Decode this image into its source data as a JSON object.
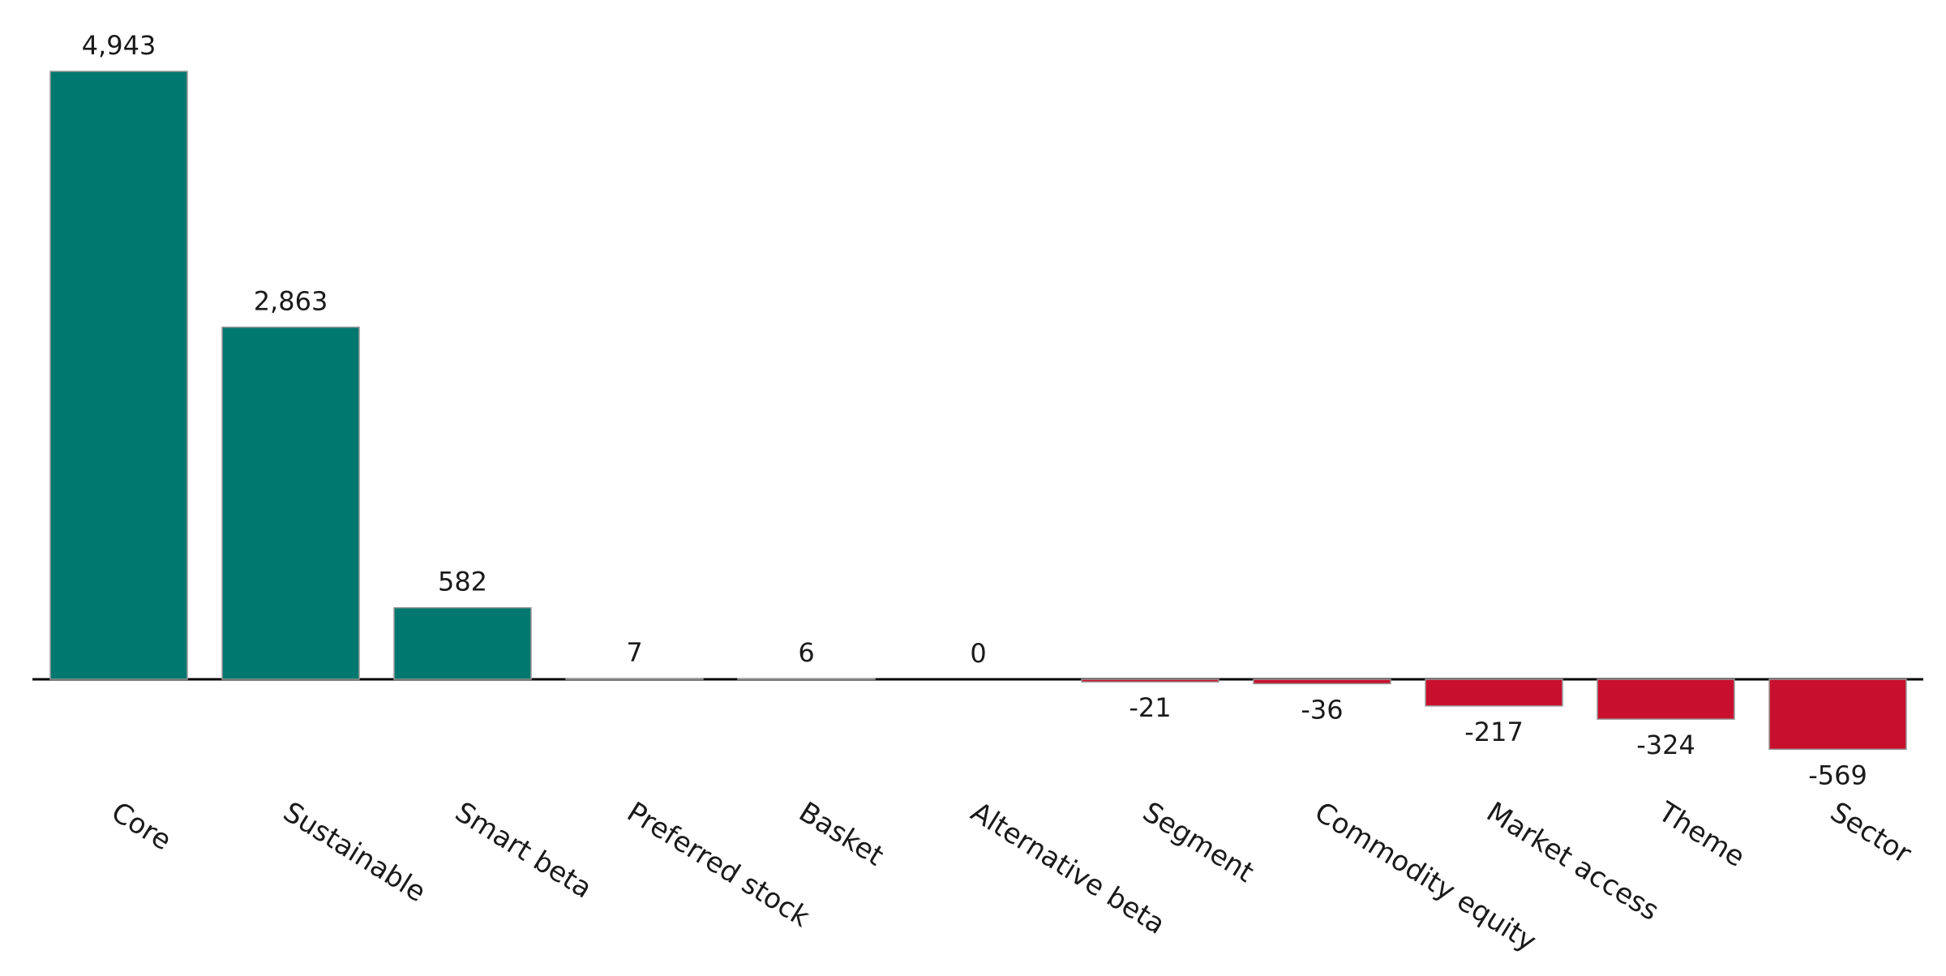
{
  "chart_data": {
    "type": "bar",
    "categories": [
      "Core",
      "Sustainable",
      "Smart beta",
      "Preferred stock",
      "Basket",
      "Alternative beta",
      "Segment",
      "Commodity equity",
      "Market access",
      "Theme",
      "Sector"
    ],
    "values": [
      4943,
      2863,
      582,
      7,
      6,
      0,
      -21,
      -36,
      -217,
      -324,
      -569
    ],
    "value_labels": [
      "4,943",
      "2,863",
      "582",
      "7",
      "6",
      "0",
      "-21",
      "-36",
      "-217",
      "-324",
      "-569"
    ],
    "positive_color": "#00786f",
    "negative_color": "#c8102e"
  }
}
